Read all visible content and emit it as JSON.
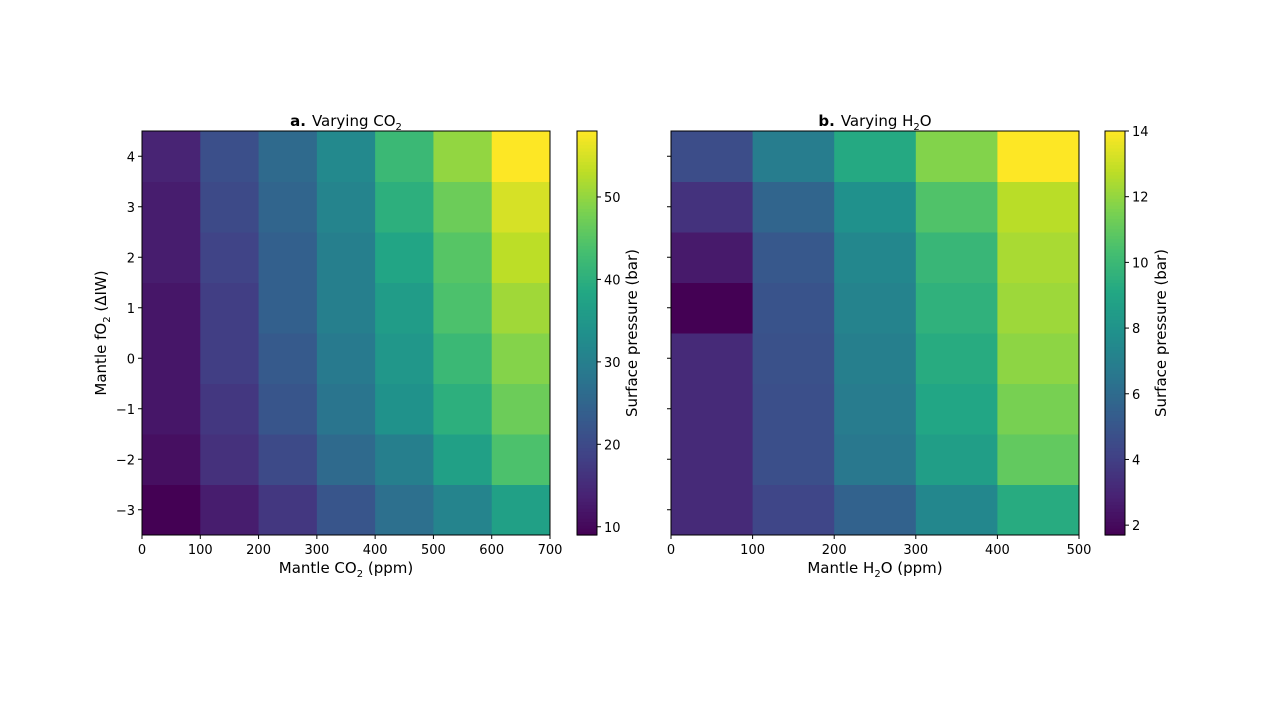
{
  "chart_data": [
    {
      "type": "heatmap",
      "panel_label": "a.",
      "title_prefix": "Varying CO",
      "title_sub": "2",
      "xlabel_prefix": "Mantle CO",
      "xlabel_sub": "2",
      "xlabel_suffix": " (ppm)",
      "ylabel_prefix": "Mantle fO",
      "ylabel_sub": "2",
      "ylabel_suffix": " (ΔIW)",
      "colorbar_label": "Surface pressure (bar)",
      "colormap": "viridis",
      "x_edges": [
        0,
        100,
        200,
        300,
        400,
        500,
        600,
        700
      ],
      "y_edges": [
        -3.5,
        -2.5,
        -1.5,
        -0.5,
        0.5,
        1.5,
        2.5,
        3.5,
        4.5
      ],
      "xlim": [
        0,
        700
      ],
      "ylim": [
        -3.5,
        4.5
      ],
      "xticks": [
        0,
        100,
        200,
        300,
        400,
        500,
        600,
        700
      ],
      "yticks": [
        -3,
        -2,
        -1,
        0,
        1,
        2,
        3,
        4
      ],
      "vmin": 9,
      "vmax": 58,
      "colorbar_ticks": [
        10,
        20,
        30,
        40,
        50
      ],
      "values": [
        [
          9,
          13,
          17,
          22,
          27,
          31,
          37
        ],
        [
          11,
          16,
          20,
          26,
          30,
          37,
          44
        ],
        [
          12,
          17,
          22,
          28,
          34,
          40,
          47
        ],
        [
          12,
          18,
          23,
          29,
          35,
          42,
          49
        ],
        [
          12,
          18,
          24,
          30,
          36,
          44,
          51
        ],
        [
          13,
          19,
          24,
          30,
          38,
          45,
          53
        ],
        [
          13,
          20,
          25,
          31,
          40,
          47,
          55
        ],
        [
          14,
          21,
          26,
          32,
          42,
          50,
          58
        ]
      ]
    },
    {
      "type": "heatmap",
      "panel_label": "b.",
      "title_prefix": "Varying H",
      "title_sub": "2",
      "title_suffix": "O",
      "xlabel_prefix": "Mantle H",
      "xlabel_sub": "2",
      "xlabel_suffix": "O (ppm)",
      "colorbar_label": "Surface pressure (bar)",
      "colormap": "viridis",
      "x_edges": [
        0,
        100,
        200,
        300,
        400,
        500
      ],
      "y_edges": [
        -3.5,
        -2.5,
        -1.5,
        -0.5,
        0.5,
        1.5,
        2.5,
        3.5,
        4.5
      ],
      "xlim": [
        0,
        500
      ],
      "ylim": [
        -3.5,
        4.5
      ],
      "xticks": [
        0,
        100,
        200,
        300,
        400,
        500
      ],
      "yticks": [
        -3,
        -2,
        -1,
        0,
        1,
        2,
        3,
        4
      ],
      "vmin": 1.7,
      "vmax": 14,
      "colorbar_ticks": [
        2,
        4,
        6,
        8,
        10,
        12,
        14
      ],
      "values": [
        [
          3.2,
          4.3,
          5.6,
          7.4,
          9.3
        ],
        [
          3.2,
          4.7,
          6.6,
          8.6,
          11.0
        ],
        [
          3.2,
          4.7,
          6.8,
          9.0,
          11.5
        ],
        [
          3.2,
          4.8,
          7.0,
          9.3,
          11.9
        ],
        [
          1.7,
          4.9,
          7.2,
          9.6,
          12.2
        ],
        [
          2.6,
          5.1,
          7.4,
          9.9,
          12.4
        ],
        [
          3.5,
          5.7,
          7.9,
          10.6,
          12.7
        ],
        [
          4.6,
          6.9,
          9.2,
          11.7,
          14.0
        ]
      ]
    }
  ]
}
